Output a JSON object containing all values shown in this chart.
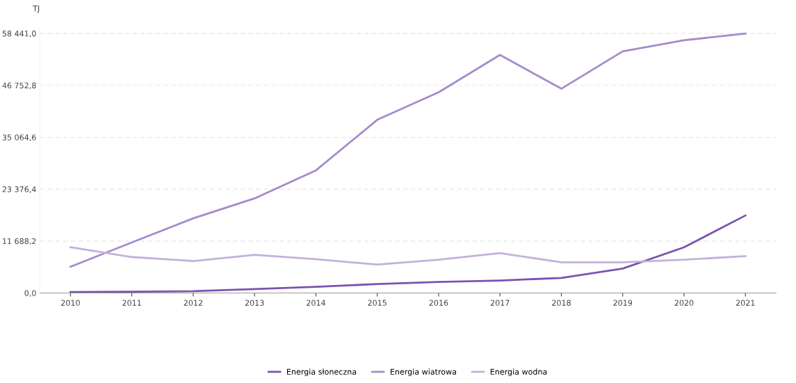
{
  "chart_data": {
    "type": "line",
    "ylabel": "TJ",
    "categories": [
      "2010",
      "2011",
      "2012",
      "2013",
      "2014",
      "2015",
      "2016",
      "2017",
      "2018",
      "2019",
      "2020",
      "2021"
    ],
    "series": [
      {
        "name": "Energia słoneczna",
        "color": "#7b52b0",
        "values": [
          200,
          300,
          400,
          900,
          1400,
          2000,
          2500,
          2800,
          3400,
          5500,
          10300,
          17450
        ]
      },
      {
        "name": "Energia wiatrowa",
        "color": "#a58bcc",
        "values": [
          5900,
          11400,
          16800,
          21300,
          27600,
          39000,
          45200,
          53600,
          46000,
          54400,
          56900,
          58400
        ]
      },
      {
        "name": "Energia wodna",
        "color": "#c4b0dc",
        "values": [
          10300,
          8100,
          7200,
          8600,
          7600,
          6400,
          7500,
          9000,
          6900,
          6900,
          7500,
          8300
        ]
      }
    ],
    "ylim": [
      0,
      59500
    ],
    "yticks": [
      {
        "value": 0,
        "label": "0,0"
      },
      {
        "value": 11688.2,
        "label": "11 688,2"
      },
      {
        "value": 23376.4,
        "label": "23 376,4"
      },
      {
        "value": 35064.6,
        "label": "35 064,6"
      },
      {
        "value": 46752.8,
        "label": "46 752,8"
      },
      {
        "value": 58441,
        "label": "58 441,0"
      }
    ],
    "grid": "y",
    "legend": "bottom",
    "marker": "none",
    "line_style": "solid"
  }
}
